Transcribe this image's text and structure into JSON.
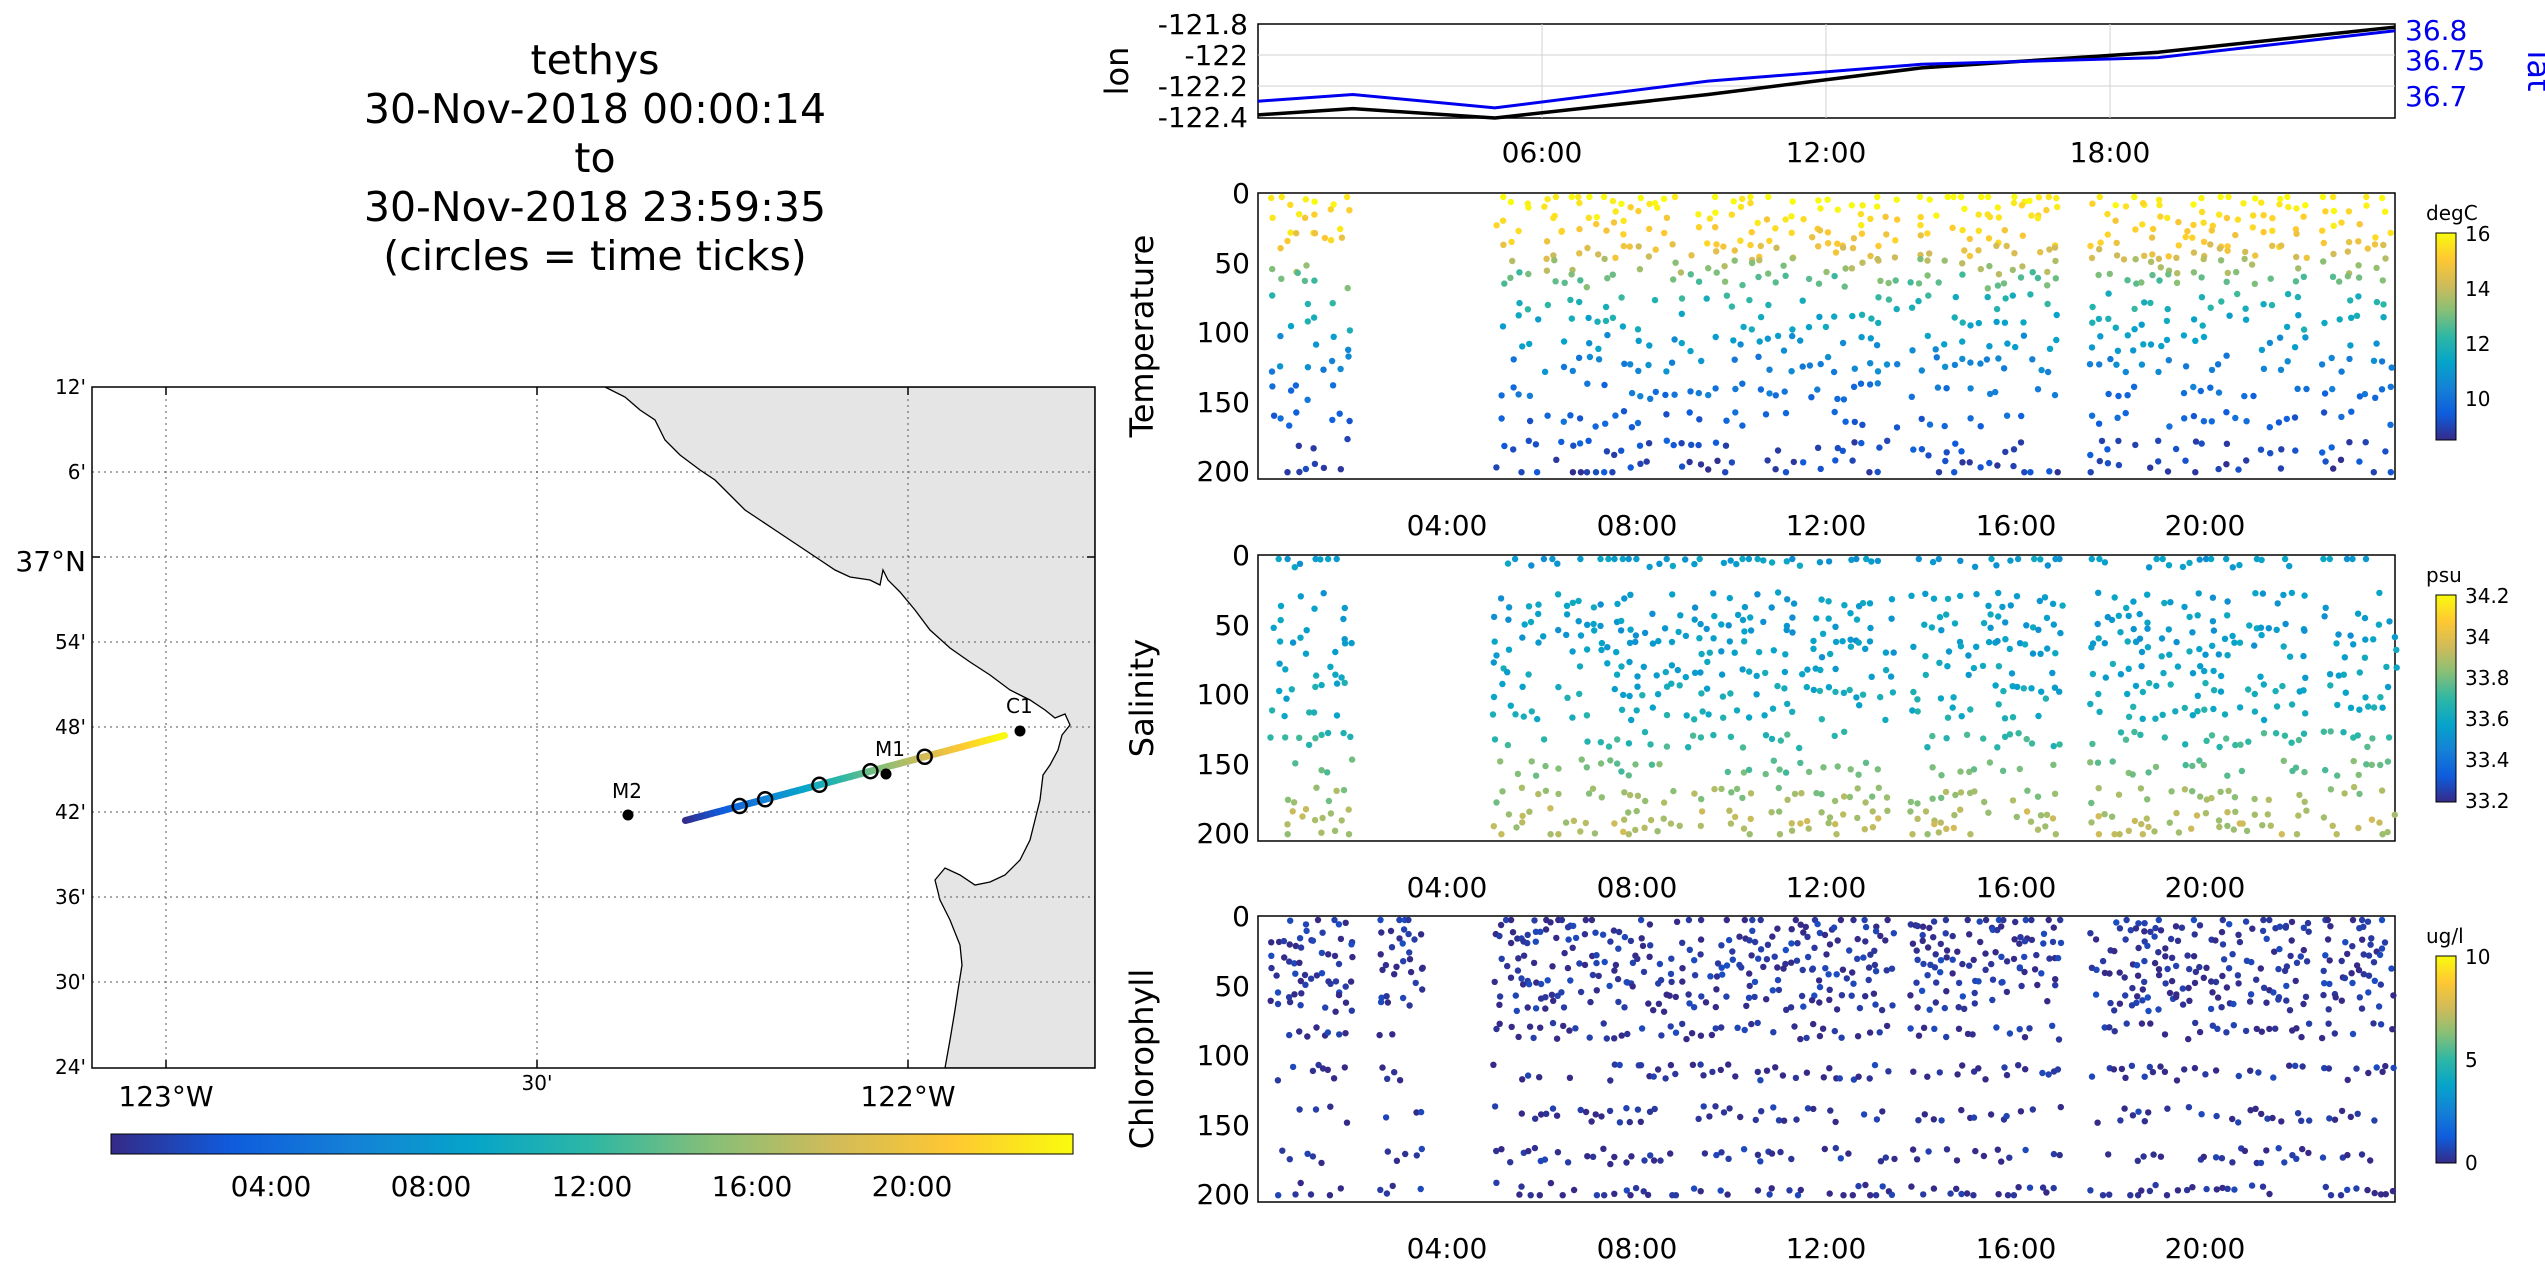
{
  "title": {
    "lines": [
      "tethys",
      "30-Nov-2018 00:00:14",
      "to",
      "30-Nov-2018 23:59:35",
      "(circles = time ticks)"
    ]
  },
  "colors": {
    "parula": [
      "#352a87",
      "#0f5cdd",
      "#1481d6",
      "#06a4ca",
      "#2eb7a4",
      "#87bf77",
      "#d1bb59",
      "#fec832",
      "#f9fb0e"
    ],
    "land": "#e5e5e5",
    "lon_line": "#000000",
    "lat_line": "#0000ee"
  },
  "map": {
    "lat_labels": [
      "12'",
      "6'",
      "37°N",
      "54'",
      "48'",
      "42'",
      "36'",
      "30'",
      "24'"
    ],
    "lon_labels": [
      "123°W",
      "30'",
      "122°W"
    ],
    "stations": [
      {
        "name": "M2",
        "lon": -122.38,
        "lat": 36.7
      },
      {
        "name": "M1",
        "lon": -122.03,
        "lat": 36.75
      },
      {
        "name": "C1",
        "lon": -121.85,
        "lat": 36.8
      }
    ],
    "colorbar_ticks": [
      "04:00",
      "08:00",
      "12:00",
      "16:00",
      "20:00"
    ]
  },
  "track": {
    "ylabel_left": "lon",
    "ylabel_right": "lat",
    "lon_ticks": [
      "-121.8",
      "-122",
      "-122.2",
      "-122.4"
    ],
    "lat_ticks": [
      "36.8",
      "36.75",
      "36.7"
    ],
    "time_ticks": [
      "06:00",
      "12:00",
      "18:00"
    ]
  },
  "panels": [
    {
      "key": "temperature",
      "ylabel": "Temperature",
      "unit": "degC",
      "y_ticks": [
        "0",
        "50",
        "100",
        "150",
        "200"
      ],
      "cb_ticks": [
        "16",
        "14",
        "12",
        "10"
      ],
      "time_ticks": [
        "04:00",
        "08:00",
        "12:00",
        "16:00",
        "20:00"
      ]
    },
    {
      "key": "salinity",
      "ylabel": "Salinity",
      "unit": "psu",
      "y_ticks": [
        "0",
        "50",
        "100",
        "150",
        "200"
      ],
      "cb_ticks": [
        "34.2",
        "34",
        "33.8",
        "33.6",
        "33.4",
        "33.2"
      ],
      "time_ticks": [
        "04:00",
        "08:00",
        "12:00",
        "16:00",
        "20:00"
      ]
    },
    {
      "key": "chlorophyll",
      "ylabel": "Chlorophyll",
      "unit": "ug/l",
      "y_ticks": [
        "0",
        "50",
        "100",
        "150",
        "200"
      ],
      "cb_ticks": [
        "10",
        "5",
        "0"
      ],
      "time_ticks": [
        "04:00",
        "08:00",
        "12:00",
        "16:00",
        "20:00"
      ]
    }
  ],
  "chart_data": [
    {
      "type": "line",
      "x_unit": "hours on 30-Nov-2018",
      "xlim": [
        0,
        24
      ],
      "series": [
        {
          "name": "lon",
          "x": [
            0,
            2,
            5,
            9.5,
            14,
            19,
            24
          ],
          "y": [
            -122.38,
            -122.34,
            -122.4,
            -122.25,
            -122.08,
            -121.98,
            -121.82
          ],
          "ylim": [
            -122.4,
            -121.8
          ]
        },
        {
          "name": "lat",
          "x": [
            0,
            2,
            5,
            9.5,
            14,
            19,
            24
          ],
          "y": [
            36.705,
            36.715,
            36.695,
            36.735,
            36.76,
            36.77,
            36.81
          ],
          "ylim": [
            36.68,
            36.82
          ]
        }
      ]
    },
    {
      "type": "scatter",
      "title": "",
      "xlabel": "",
      "ylabel": "Temperature",
      "xlim": [
        0,
        24
      ],
      "ylim": [
        200,
        0
      ],
      "clim": [
        8.5,
        16
      ],
      "colorbar_label": "degC",
      "time_ticks": [
        "04:00",
        "08:00",
        "12:00",
        "16:00",
        "20:00"
      ],
      "segments": [
        [
          0.3,
          2.0
        ],
        [
          5.0,
          13.5
        ],
        [
          13.8,
          17.0
        ],
        [
          17.6,
          22.2
        ],
        [
          22.5,
          24.0
        ]
      ],
      "profile_gap_hours": 0.18,
      "depths": [
        0,
        10,
        20,
        30,
        40,
        50,
        60,
        75,
        90,
        105,
        120,
        140,
        160,
        180,
        195
      ],
      "profile": [
        16,
        15.6,
        15.3,
        15.0,
        14.5,
        13.5,
        12.8,
        12.0,
        11.5,
        11.0,
        10.5,
        10.0,
        9.6,
        9.2,
        9.0
      ]
    },
    {
      "type": "scatter",
      "xlabel": "",
      "ylabel": "Salinity",
      "xlim": [
        0,
        24
      ],
      "ylim": [
        200,
        0
      ],
      "clim": [
        33.2,
        34.2
      ],
      "colorbar_label": "psu",
      "time_ticks": [
        "04:00",
        "08:00",
        "12:00",
        "16:00",
        "20:00"
      ],
      "segments": [
        [
          0.3,
          2.0
        ],
        [
          5.0,
          13.5
        ],
        [
          13.8,
          17.0
        ],
        [
          17.6,
          22.2
        ],
        [
          22.5,
          24.0
        ]
      ],
      "profile_gap_hours": 0.15,
      "depths": [
        0,
        30,
        45,
        55,
        65,
        80,
        95,
        110,
        130,
        150,
        170,
        185,
        195
      ],
      "profile": [
        33.55,
        33.55,
        33.55,
        33.55,
        33.56,
        33.58,
        33.6,
        33.62,
        33.7,
        33.78,
        33.85,
        33.9,
        33.9
      ]
    },
    {
      "type": "scatter",
      "xlabel": "",
      "ylabel": "Chlorophyll",
      "xlim": [
        0,
        24
      ],
      "ylim": [
        200,
        0
      ],
      "clim": [
        0,
        10
      ],
      "colorbar_label": "ug/l",
      "time_ticks": [
        "04:00",
        "08:00",
        "12:00",
        "16:00",
        "20:00"
      ],
      "segments": [
        [
          0.3,
          2.0
        ],
        [
          2.6,
          3.5
        ],
        [
          5.0,
          13.5
        ],
        [
          13.8,
          17.0
        ],
        [
          17.6,
          22.2
        ],
        [
          22.5,
          24.0
        ]
      ],
      "profile_gap_hours": 0.12,
      "depths": [
        0,
        10,
        20,
        30,
        40,
        50,
        60,
        80,
        110,
        140,
        170,
        195
      ],
      "profile": [
        0.3,
        0.3,
        0.3,
        0.3,
        0.3,
        0.3,
        0.3,
        0.2,
        0.2,
        0.2,
        0.2,
        0.2
      ]
    }
  ]
}
